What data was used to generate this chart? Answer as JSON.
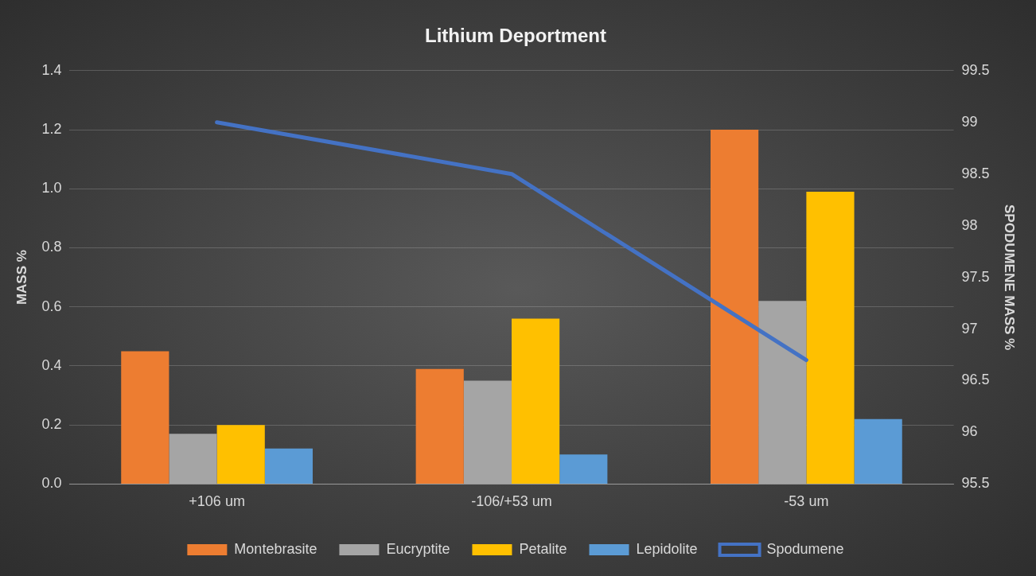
{
  "chart_data": {
    "type": "bar",
    "title": "Lithium Deportment",
    "ylabel": "MASS %",
    "y2label": "SPODUMENE MASS %",
    "categories": [
      "+106 um",
      "-106/+53 um",
      "-53 um"
    ],
    "series": [
      {
        "name": "Montebrasite",
        "color": "#ed7d31",
        "values": [
          0.45,
          0.39,
          1.2
        ]
      },
      {
        "name": "Eucryptite",
        "color": "#a5a5a5",
        "values": [
          0.17,
          0.35,
          0.62
        ]
      },
      {
        "name": "Petalite",
        "color": "#ffc000",
        "values": [
          0.2,
          0.56,
          0.99
        ]
      },
      {
        "name": "Lepidolite",
        "color": "#5b9bd5",
        "values": [
          0.12,
          0.1,
          0.22
        ]
      },
      {
        "name": "Spodumene",
        "color": "#4472c4",
        "type": "line",
        "axis": "y2",
        "values": [
          99.0,
          98.5,
          96.7
        ]
      }
    ],
    "ylim": [
      0,
      1.4
    ],
    "yticks": [
      {
        "value": 0,
        "label": "0.0"
      },
      {
        "value": 0.2,
        "label": "0.2"
      },
      {
        "value": 0.4,
        "label": "0.4"
      },
      {
        "value": 0.6,
        "label": "0.6"
      },
      {
        "value": 0.8,
        "label": "0.8"
      },
      {
        "value": 1.0,
        "label": "1.0"
      },
      {
        "value": 1.2,
        "label": "1.2"
      },
      {
        "value": 1.4,
        "label": "1.4"
      }
    ],
    "y2lim": [
      95.5,
      99.5
    ],
    "y2ticks": [
      95.5,
      96,
      96.5,
      97,
      97.5,
      98,
      98.5,
      99,
      99.5
    ],
    "grid": "y",
    "legend": "bottom",
    "marker": "none",
    "line_style": "solid"
  }
}
